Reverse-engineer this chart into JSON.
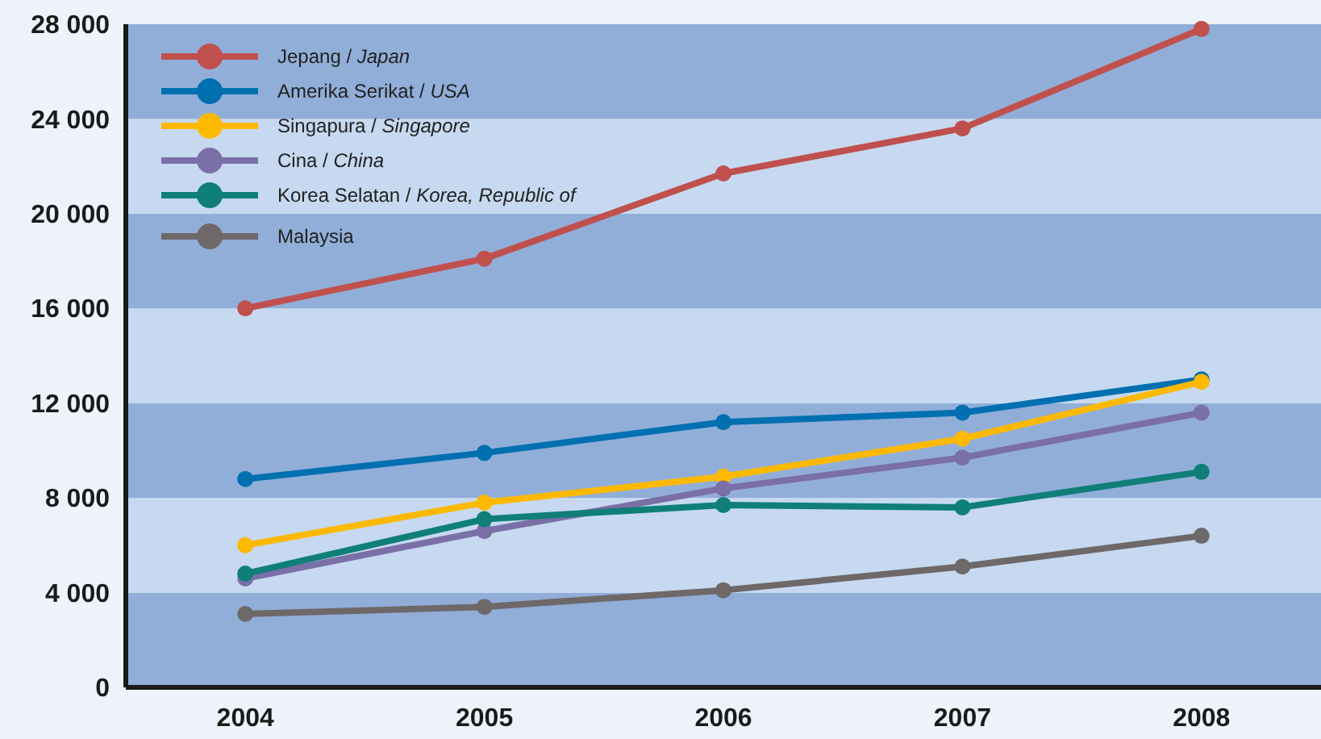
{
  "chart_data": {
    "type": "line",
    "categories": [
      "2004",
      "2005",
      "2006",
      "2007",
      "2008"
    ],
    "ylim": [
      0,
      28000
    ],
    "yticks": [
      {
        "value": 0,
        "label": "0"
      },
      {
        "value": 4000,
        "label": "4 000"
      },
      {
        "value": 8000,
        "label": "8 000"
      },
      {
        "value": 12000,
        "label": "12 000"
      },
      {
        "value": 16000,
        "label": "16 000"
      },
      {
        "value": 20000,
        "label": "20 000"
      },
      {
        "value": 24000,
        "label": "24 000"
      },
      {
        "value": 28000,
        "label": "28 000"
      }
    ],
    "bands": [
      {
        "axis": "y",
        "from": 0,
        "to": 4000,
        "color": "#91aed9"
      },
      {
        "axis": "y",
        "from": 4000,
        "to": 8000,
        "color": "#c6d9f0"
      },
      {
        "axis": "y",
        "from": 8000,
        "to": 12000,
        "color": "#91aed9"
      },
      {
        "axis": "y",
        "from": 12000,
        "to": 16000,
        "color": "#c6d9f0"
      },
      {
        "axis": "y",
        "from": 16000,
        "to": 20000,
        "color": "#91aed9"
      },
      {
        "axis": "y",
        "from": 20000,
        "to": 24000,
        "color": "#c6d9f0"
      },
      {
        "axis": "y",
        "from": 24000,
        "to": 28000,
        "color": "#91aed9"
      }
    ],
    "legend": "top left",
    "marker": "circle",
    "line_style": "solid",
    "series": [
      {
        "name": "Jepang / Japan",
        "color": "#c0504d",
        "values": [
          16000,
          18100,
          21700,
          23600,
          27800
        ]
      },
      {
        "name": "Amerika Serikat / USA",
        "color": "#0070b0",
        "values": [
          8800,
          9900,
          11200,
          11600,
          13000
        ]
      },
      {
        "name": "Singapura / Singapore",
        "color": "#fdb900",
        "values": [
          6000,
          7800,
          8900,
          10500,
          12900
        ]
      },
      {
        "name": "Cina / China",
        "color": "#7b6fa8",
        "values": [
          4600,
          6600,
          8400,
          9700,
          11600
        ]
      },
      {
        "name": "Korea Selatan / Korea, Republic of",
        "color": "#0f7f78",
        "values": [
          4800,
          7100,
          7700,
          7600,
          9100
        ]
      },
      {
        "name": "Malaysia",
        "color": "#6e6868",
        "values": [
          3100,
          3400,
          4100,
          5100,
          6400
        ]
      }
    ]
  }
}
